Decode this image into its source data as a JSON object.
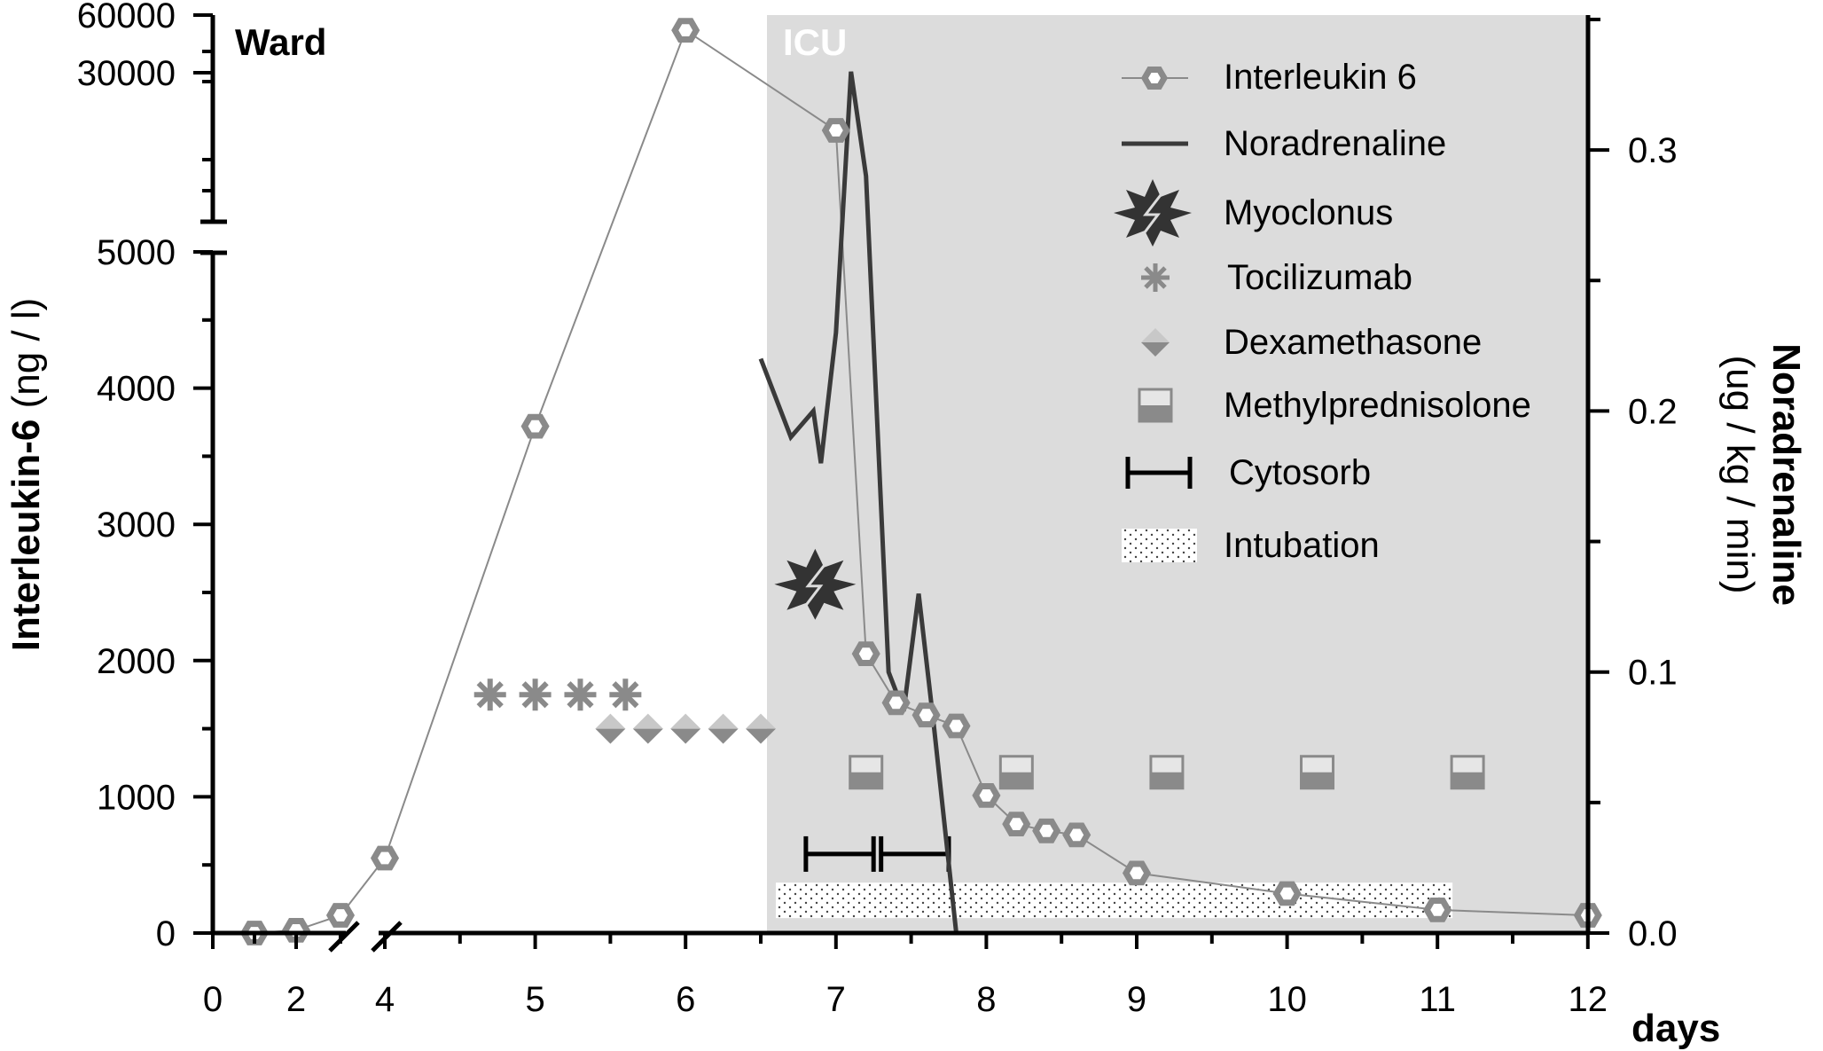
{
  "chart_data": {
    "type": "line",
    "x_axis": {
      "label": "days",
      "ticks": [
        "0",
        "2",
        "4",
        "5",
        "6",
        "7",
        "8",
        "9",
        "10",
        "11",
        "12"
      ],
      "tick_values": [
        0,
        2,
        4,
        5,
        6,
        7,
        8,
        9,
        10,
        11,
        12
      ],
      "broken_between": [
        2,
        4
      ]
    },
    "y_left": {
      "label_bold": "Interleukin-6",
      "label_unit": " (ng / l)",
      "lower_ticks": [
        "0",
        "1000",
        "2000",
        "3000",
        "4000",
        "5000"
      ],
      "lower_tick_values": [
        0,
        1000,
        2000,
        3000,
        4000,
        5000
      ],
      "upper_ticks": [
        "30000",
        "60000"
      ],
      "upper_tick_values": [
        30000,
        60000
      ],
      "broken_between": [
        5000,
        5000
      ]
    },
    "y_right": {
      "label_bold": "Noradrenaline",
      "label_unit": "(ug / kg / min)",
      "ticks": [
        "0.0",
        "0.1",
        "0.2",
        "0.3"
      ],
      "tick_values": [
        0.0,
        0.1,
        0.2,
        0.3
      ],
      "ylim": [
        0,
        0.35
      ]
    },
    "regions": [
      {
        "name": "Ward",
        "x_from": 0,
        "x_to": 6.5,
        "color": "#ffffff"
      },
      {
        "name": "ICU",
        "x_from": 6.5,
        "x_to": 12,
        "color": "#dcdcdc"
      }
    ],
    "series": [
      {
        "name": "Interleukin 6",
        "axis": "left",
        "color": "#8a8a8a",
        "points": [
          [
            1,
            0
          ],
          [
            2,
            20
          ],
          [
            3,
            130
          ],
          [
            4,
            550
          ],
          [
            5,
            3720
          ],
          [
            6,
            50000
          ],
          [
            7,
            15000
          ],
          [
            7.2,
            2050
          ],
          [
            7.4,
            1690
          ],
          [
            7.6,
            1600
          ],
          [
            7.8,
            1520
          ],
          [
            8,
            1010
          ],
          [
            8.2,
            800
          ],
          [
            8.4,
            750
          ],
          [
            8.6,
            720
          ],
          [
            9,
            440
          ],
          [
            10,
            290
          ],
          [
            11,
            170
          ],
          [
            12,
            130
          ]
        ]
      },
      {
        "name": "Noradrenaline",
        "axis": "right",
        "color": "#3a3a3a",
        "points": [
          [
            6.5,
            0.22
          ],
          [
            6.7,
            0.19
          ],
          [
            6.85,
            0.2
          ],
          [
            6.9,
            0.18
          ],
          [
            7.0,
            0.23
          ],
          [
            7.1,
            0.33
          ],
          [
            7.2,
            0.29
          ],
          [
            7.35,
            0.1
          ],
          [
            7.45,
            0.085
          ],
          [
            7.55,
            0.13
          ],
          [
            7.65,
            0.08
          ],
          [
            7.8,
            0.0
          ]
        ]
      }
    ],
    "events": {
      "Tocilizumab": [
        4.7,
        5.0,
        5.3,
        5.6
      ],
      "Dexamethasone": [
        5.5,
        5.75,
        6.0,
        6.25,
        6.5
      ],
      "Myoclonus": [
        6.85
      ],
      "Methylprednisolone": [
        7.2,
        8.2,
        9.2,
        10.2,
        11.2
      ],
      "Cytosorb": [
        [
          6.8,
          7.25
        ],
        [
          7.3,
          7.75
        ]
      ],
      "Intubation": [
        [
          6.6,
          11.1
        ]
      ]
    },
    "event_levels_il6": {
      "Tocilizumab": 1750,
      "Dexamethasone": 1500,
      "Myoclonus": 2560,
      "Methylprednisolone": 1180,
      "Cytosorb": 580,
      "Intubation": 240
    },
    "annotations": [
      "Ward",
      "ICU"
    ],
    "legend": {
      "position": "top-right",
      "entries": [
        "Interleukin 6",
        "Noradrenaline",
        "Myoclonus",
        "Tocilizumab",
        "Dexamethasone",
        "Methylprednisolone",
        "Cytosorb",
        "Intubation"
      ]
    },
    "colors": {
      "icu_background": "#dcdcdc",
      "il6": "#8a8a8a",
      "noradrenaline": "#3a3a3a",
      "marker_gray": "#8a8a8a",
      "myoclonus": "#333333"
    }
  }
}
